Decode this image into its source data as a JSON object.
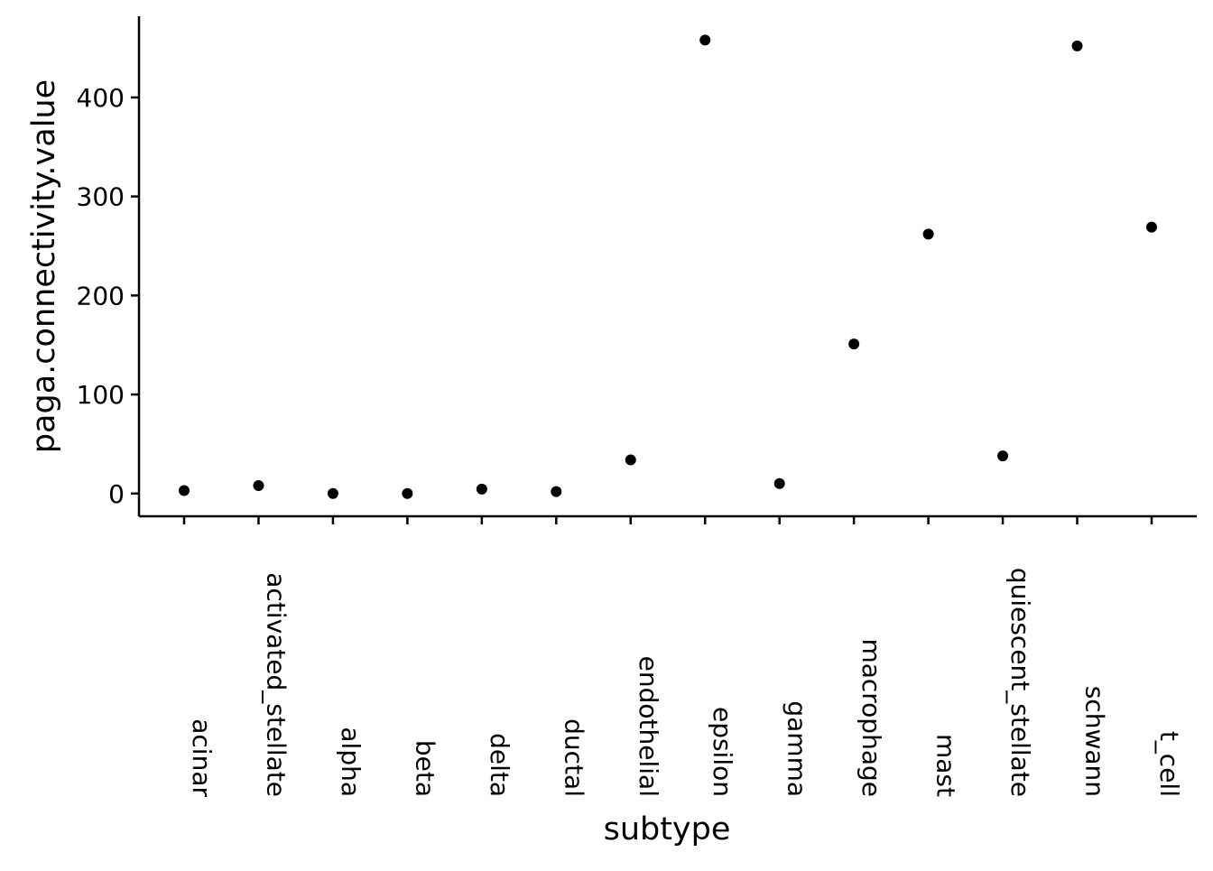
{
  "chart_data": {
    "type": "scatter",
    "title": "",
    "xlabel": "subtype",
    "ylabel": "paga.connectivity.value",
    "categories": [
      "acinar",
      "activated_stellate",
      "alpha",
      "beta",
      "delta",
      "ductal",
      "endothelial",
      "epsilon",
      "gamma",
      "macrophage",
      "mast",
      "quiescent_stellate",
      "schwann",
      "t_cell"
    ],
    "values": [
      3,
      8,
      0,
      0,
      4.5,
      2,
      34,
      458,
      10,
      151,
      262,
      38,
      452,
      269
    ],
    "ylim": [
      -23,
      482
    ],
    "yticks": [
      0,
      100,
      200,
      300,
      400
    ],
    "grid": false,
    "legend": "none",
    "colors": {
      "point": "#000000",
      "axis": "#000000",
      "background": "#ffffff"
    }
  }
}
